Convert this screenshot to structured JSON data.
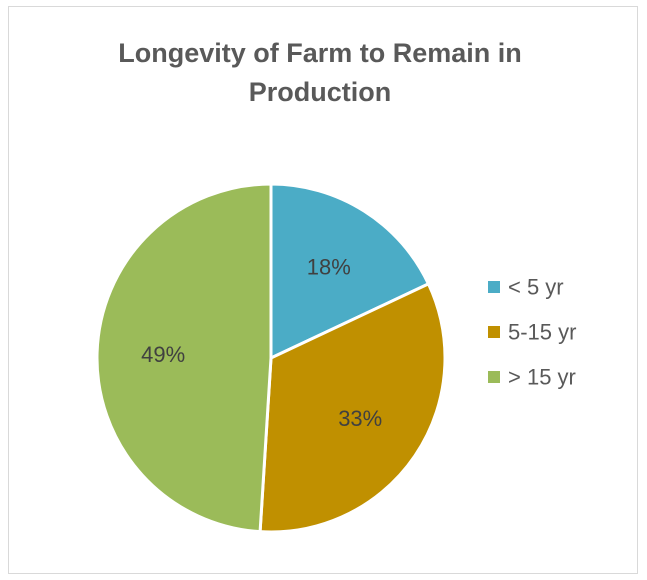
{
  "chart_data": {
    "type": "pie",
    "title": "Longevity of Farm to Remain in Production",
    "categories": [
      "< 5 yr",
      "5-15 yr",
      "> 15 yr"
    ],
    "values": [
      18,
      33,
      49
    ],
    "data_labels": [
      "18%",
      "33%",
      "49%"
    ],
    "colors": [
      "#4bacc6",
      "#c09000",
      "#9bbb59"
    ],
    "legend_position": "right",
    "start_angle_deg": 0,
    "direction": "clockwise"
  }
}
